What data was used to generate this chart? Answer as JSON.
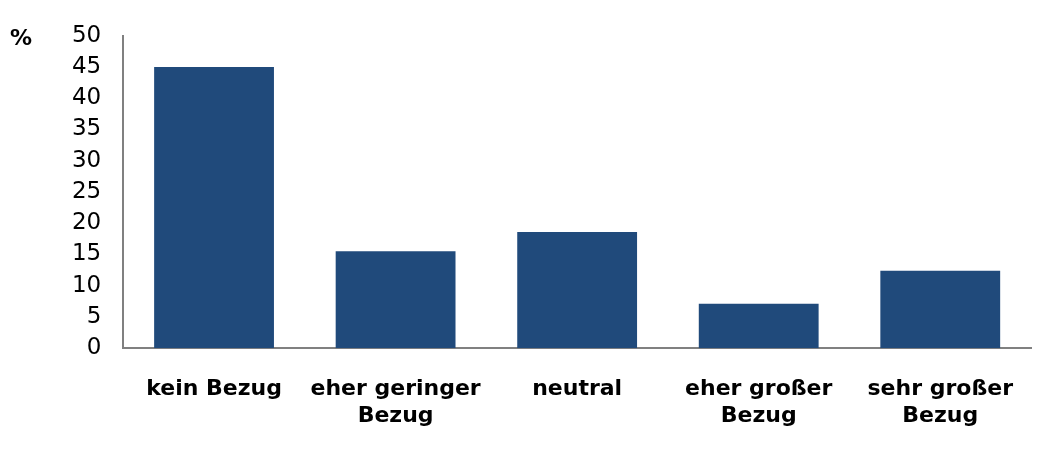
{
  "chart_data": {
    "type": "bar",
    "ylabel": "%",
    "categories": [
      "kein Bezug",
      "eher geringer Bezug",
      "neutral",
      "eher großer Bezug",
      "sehr großer Bezug"
    ],
    "values": [
      45,
      15.5,
      18.6,
      7.1,
      12.4
    ],
    "color": "#204a7b",
    "ylim": [
      0,
      50
    ],
    "yticks": [
      0,
      5,
      10,
      15,
      20,
      25,
      30,
      35,
      40,
      45,
      50
    ],
    "grid": false,
    "legend": false
  }
}
